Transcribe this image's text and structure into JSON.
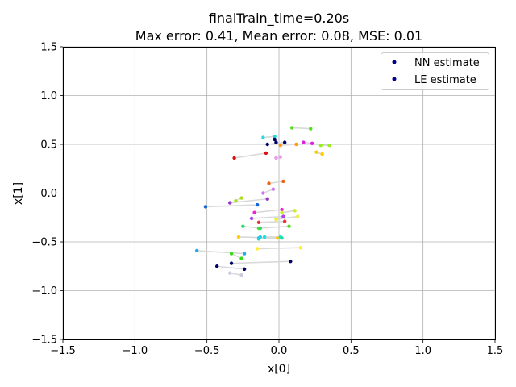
{
  "chart_data": {
    "type": "scatter",
    "title_line1": "finalTrain_time=0.20s",
    "title_line2": "Max error: 0.41, Mean error: 0.08, MSE: 0.01",
    "xlabel": "x[0]",
    "ylabel": "x[1]",
    "xlim": [
      -1.5,
      1.5
    ],
    "ylim": [
      -1.5,
      1.5
    ],
    "xticks": [
      -1.5,
      -1.0,
      -0.5,
      0.0,
      0.5,
      1.0,
      1.5
    ],
    "yticks": [
      -1.5,
      -1.0,
      -0.5,
      0.0,
      0.5,
      1.0,
      1.5
    ],
    "xtick_labels": [
      "−1.5",
      "−1.0",
      "−0.5",
      "0.0",
      "0.5",
      "1.0",
      "1.5"
    ],
    "ytick_labels": [
      "−1.5",
      "−1.0",
      "−0.5",
      "0.0",
      "0.5",
      "1.0",
      "1.5"
    ],
    "grid": true,
    "legend_position": "top-right",
    "legend": [
      {
        "label": "NN estimate",
        "color": "#00008b"
      },
      {
        "label": "LE estimate",
        "color": "#00008b"
      }
    ],
    "pairs": [
      {
        "nn": [
          0.09,
          0.67
        ],
        "le": [
          0.22,
          0.66
        ],
        "color": "#55dd22"
      },
      {
        "nn": [
          -0.11,
          0.57
        ],
        "le": [
          -0.03,
          0.58
        ],
        "color": "#22dddd"
      },
      {
        "nn": [
          -0.03,
          0.55
        ],
        "le": [
          -0.02,
          0.52
        ],
        "color": "#000066"
      },
      {
        "nn": [
          0.04,
          0.52
        ],
        "le": [
          -0.08,
          0.5
        ],
        "color": "#000066"
      },
      {
        "nn": [
          0.12,
          0.5
        ],
        "le": [
          0.01,
          0.49
        ],
        "color": "#ff9911"
      },
      {
        "nn": [
          0.17,
          0.52
        ],
        "le": [
          0.23,
          0.51
        ],
        "color": "#dd22dd"
      },
      {
        "nn": [
          0.29,
          0.49
        ],
        "le": [
          0.35,
          0.49
        ],
        "color": "#99ee22"
      },
      {
        "nn": [
          0.26,
          0.42
        ],
        "le": [
          0.3,
          0.4
        ],
        "color": "#ffcc00"
      },
      {
        "nn": [
          -0.09,
          0.41
        ],
        "le": [
          -0.31,
          0.36
        ],
        "color": "#dd1111"
      },
      {
        "nn": [
          0.01,
          0.37
        ],
        "le": [
          -0.02,
          0.36
        ],
        "color": "#ee99ee"
      },
      {
        "nn": [
          0.03,
          0.12
        ],
        "le": [
          -0.07,
          0.1
        ],
        "color": "#ee6611"
      },
      {
        "nn": [
          -0.04,
          0.04
        ],
        "le": [
          -0.11,
          0.0
        ],
        "color": "#cc77ee"
      },
      {
        "nn": [
          -0.26,
          -0.05
        ],
        "le": [
          -0.3,
          -0.08
        ],
        "color": "#aadd22"
      },
      {
        "nn": [
          -0.08,
          -0.06
        ],
        "le": [
          -0.34,
          -0.1
        ],
        "color": "#9933cc"
      },
      {
        "nn": [
          -0.15,
          -0.12
        ],
        "le": [
          -0.51,
          -0.14
        ],
        "color": "#1166dd"
      },
      {
        "nn": [
          0.02,
          -0.17
        ],
        "le": [
          -0.17,
          -0.2
        ],
        "color": "#ee22cc"
      },
      {
        "nn": [
          0.11,
          -0.18
        ],
        "le": [
          0.02,
          -0.2
        ],
        "color": "#ccee22"
      },
      {
        "nn": [
          0.13,
          -0.24
        ],
        "le": [
          -0.02,
          -0.27
        ],
        "color": "#eeee44"
      },
      {
        "nn": [
          0.03,
          -0.24
        ],
        "le": [
          -0.19,
          -0.26
        ],
        "color": "#aa44ee"
      },
      {
        "nn": [
          0.04,
          -0.29
        ],
        "le": [
          -0.14,
          -0.3
        ],
        "color": "#ee3333"
      },
      {
        "nn": [
          0.07,
          -0.34
        ],
        "le": [
          -0.14,
          -0.36
        ],
        "color": "#55dd22"
      },
      {
        "nn": [
          -0.13,
          -0.36
        ],
        "le": [
          -0.25,
          -0.34
        ],
        "color": "#22dd66"
      },
      {
        "nn": [
          -0.01,
          -0.46
        ],
        "le": [
          -0.28,
          -0.45
        ],
        "color": "#ffcc00"
      },
      {
        "nn": [
          0.01,
          -0.45
        ],
        "le": [
          -0.1,
          -0.45
        ],
        "color": "#22dddd"
      },
      {
        "nn": [
          0.02,
          -0.46
        ],
        "le": [
          -0.14,
          -0.47
        ],
        "color": "#22ddaa"
      },
      {
        "nn": [
          -0.13,
          -0.45
        ],
        "le": [
          -0.14,
          -0.46
        ],
        "color": "#22ccee"
      },
      {
        "nn": [
          0.15,
          -0.56
        ],
        "le": [
          -0.15,
          -0.57
        ],
        "color": "#ffee33"
      },
      {
        "nn": [
          -0.57,
          -0.59
        ],
        "le": [
          -0.24,
          -0.62
        ],
        "color": "#22aaee"
      },
      {
        "nn": [
          -0.33,
          -0.62
        ],
        "le": [
          -0.26,
          -0.67
        ],
        "color": "#33dd11"
      },
      {
        "nn": [
          0.08,
          -0.7
        ],
        "le": [
          -0.33,
          -0.72
        ],
        "color": "#000066"
      },
      {
        "nn": [
          -0.43,
          -0.75
        ],
        "le": [
          -0.24,
          -0.78
        ],
        "color": "#000066"
      },
      {
        "nn": [
          -0.34,
          -0.82
        ],
        "le": [
          -0.26,
          -0.84
        ],
        "color": "#ccccdd"
      }
    ]
  }
}
